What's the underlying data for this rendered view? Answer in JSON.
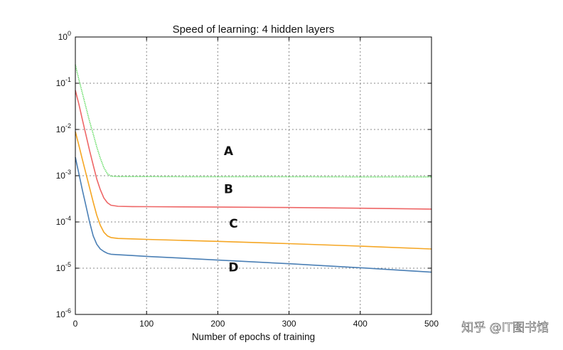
{
  "chart_data": {
    "type": "line",
    "title": "Speed of learning: 4 hidden layers",
    "xlabel": "Number of epochs of training",
    "ylabel": "",
    "xlim": [
      0,
      500
    ],
    "ylim": [
      1e-06,
      1
    ],
    "yscale": "log",
    "grid": true,
    "xticks": [
      0,
      100,
      200,
      300,
      400,
      500
    ],
    "xtick_labels": [
      "0",
      "100",
      "200",
      "300",
      "400",
      "500"
    ],
    "yticks": [
      {
        "value": 1,
        "base": "10",
        "exp": "0"
      },
      {
        "value": 0.1,
        "base": "10",
        "exp": "-1"
      },
      {
        "value": 0.01,
        "base": "10",
        "exp": "-2"
      },
      {
        "value": 0.001,
        "base": "10",
        "exp": "-3"
      },
      {
        "value": 0.0001,
        "base": "10",
        "exp": "-4"
      },
      {
        "value": 1e-05,
        "base": "10",
        "exp": "-5"
      },
      {
        "value": 1e-06,
        "base": "10",
        "exp": "-6"
      }
    ],
    "series": [
      {
        "name": "A",
        "color": "#66dd66",
        "dashed": true,
        "x": [
          0,
          5,
          10,
          15,
          20,
          25,
          30,
          35,
          40,
          45,
          50,
          60,
          80,
          100,
          150,
          200,
          300,
          400,
          500
        ],
        "y": [
          0.25,
          0.12,
          0.06,
          0.03,
          0.015,
          0.008,
          0.0042,
          0.0024,
          0.0015,
          0.0011,
          0.00098,
          0.00096,
          0.00096,
          0.00096,
          0.00095,
          0.00095,
          0.00095,
          0.00094,
          0.00094
        ]
      },
      {
        "name": "B",
        "color": "#ee6666",
        "dashed": false,
        "x": [
          0,
          5,
          10,
          15,
          20,
          25,
          30,
          35,
          40,
          45,
          50,
          60,
          80,
          100,
          150,
          200,
          300,
          400,
          500
        ],
        "y": [
          0.07,
          0.035,
          0.016,
          0.0075,
          0.0035,
          0.0017,
          0.00085,
          0.0005,
          0.00033,
          0.00026,
          0.00023,
          0.000218,
          0.000215,
          0.000214,
          0.000212,
          0.00021,
          0.000205,
          0.000198,
          0.00019
        ]
      },
      {
        "name": "C",
        "color": "#f5a623",
        "dashed": false,
        "x": [
          0,
          5,
          10,
          15,
          20,
          25,
          30,
          35,
          40,
          45,
          50,
          60,
          80,
          100,
          150,
          200,
          300,
          400,
          500
        ],
        "y": [
          0.009,
          0.0045,
          0.0022,
          0.0011,
          0.00055,
          0.00027,
          0.00014,
          8.5e-05,
          6e-05,
          5e-05,
          4.6e-05,
          4.4e-05,
          4.3e-05,
          4.2e-05,
          4e-05,
          3.8e-05,
          3.4e-05,
          3e-05,
          2.6e-05
        ]
      },
      {
        "name": "D",
        "color": "#4a7fb5",
        "dashed": false,
        "x": [
          0,
          5,
          10,
          15,
          20,
          25,
          30,
          35,
          40,
          45,
          50,
          60,
          80,
          100,
          150,
          200,
          300,
          400,
          500
        ],
        "y": [
          0.0025,
          0.0011,
          0.00048,
          0.00022,
          0.0001,
          5e-05,
          3.3e-05,
          2.6e-05,
          2.3e-05,
          2.1e-05,
          2e-05,
          1.95e-05,
          1.88e-05,
          1.8e-05,
          1.65e-05,
          1.5e-05,
          1.25e-05,
          1.02e-05,
          8.2e-06
        ]
      }
    ],
    "annotations": [
      {
        "text": "A",
        "x": 215,
        "y": 0.0028
      },
      {
        "text": "B",
        "x": 215,
        "y": 0.00042
      },
      {
        "text": "C",
        "x": 222,
        "y": 7.5e-05
      },
      {
        "text": "D",
        "x": 222,
        "y": 8.5e-06
      }
    ]
  },
  "watermark": "知乎 @IT图书馆"
}
